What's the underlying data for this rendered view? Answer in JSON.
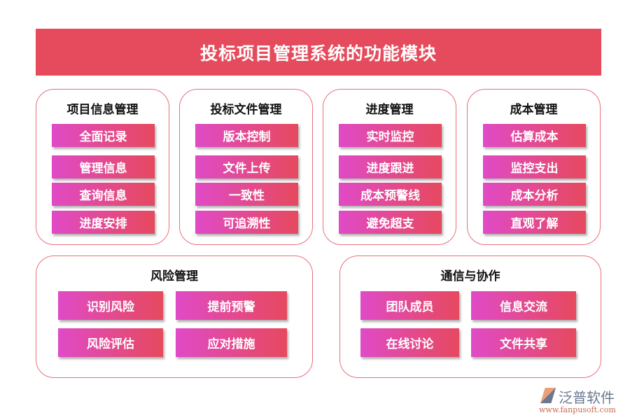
{
  "title": "投标项目管理系统的功能模块",
  "modules": [
    {
      "name": "项目信息管理",
      "items": [
        "全面记录",
        "管理信息",
        "查询信息",
        "进度安排"
      ]
    },
    {
      "name": "投标文件管理",
      "items": [
        "版本控制",
        "文件上传",
        "一致性",
        "可追溯性"
      ]
    },
    {
      "name": "进度管理",
      "items": [
        "实时监控",
        "进度跟进",
        "成本预警线",
        "避免超支"
      ]
    },
    {
      "name": "成本管理",
      "items": [
        "估算成本",
        "监控支出",
        "成本分析",
        "直观了解"
      ]
    },
    {
      "name": "风险管理",
      "items": [
        "识别风险",
        "提前预警",
        "风险评估",
        "应对措施"
      ]
    },
    {
      "name": "通信与协作",
      "items": [
        "团队成员",
        "信息交流",
        "在线讨论",
        "文件共享"
      ]
    }
  ],
  "logo": {
    "name": "泛普软件",
    "url": "www.fanpusoft.com"
  },
  "colors": {
    "title_bg": "#e54b5c",
    "button_from": "#e04ac6",
    "button_to": "#e6495e",
    "border": "#e8707c"
  }
}
